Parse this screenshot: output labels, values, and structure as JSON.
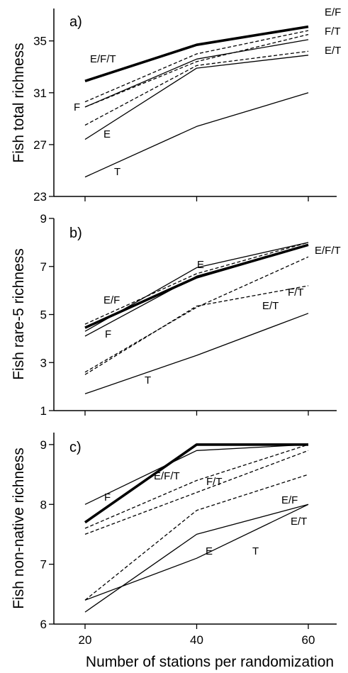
{
  "figure": {
    "xlabel": "Number of stations per randomization"
  },
  "chart_data": [
    {
      "type": "line",
      "panel_label": "a)",
      "ylabel": "Fish total richness",
      "x": [
        20,
        40,
        60
      ],
      "xticks": [
        "20",
        "40",
        "60"
      ],
      "ylim": [
        23,
        37.5
      ],
      "yticks": [
        "23",
        "27",
        "31",
        "35"
      ],
      "series": [
        {
          "name": "E/F/T",
          "values": [
            31.9,
            34.7,
            36.1
          ],
          "style": "bold"
        },
        {
          "name": "E/F",
          "values": [
            30.3,
            34.0,
            35.8
          ],
          "style": "dashed"
        },
        {
          "name": "F/T",
          "values": [
            29.9,
            33.4,
            35.5
          ],
          "style": "dashed"
        },
        {
          "name": "E/T",
          "values": [
            28.5,
            33.1,
            34.2
          ],
          "style": "dashed"
        },
        {
          "name": "F",
          "values": [
            29.9,
            33.6,
            35.1
          ],
          "style": "solid"
        },
        {
          "name": "E",
          "values": [
            27.4,
            32.9,
            33.9
          ],
          "style": "solid"
        },
        {
          "name": "T",
          "values": [
            24.5,
            28.4,
            31.0
          ],
          "style": "solid"
        }
      ]
    },
    {
      "type": "line",
      "panel_label": "b)",
      "ylabel": "Fish rare-5 richness",
      "x": [
        20,
        40,
        60
      ],
      "xticks": [
        "20",
        "40",
        "60"
      ],
      "ylim": [
        1,
        9
      ],
      "yticks": [
        "1",
        "3",
        "5",
        "7",
        "9"
      ],
      "series": [
        {
          "name": "E/F/T",
          "values": [
            4.45,
            6.55,
            7.9
          ],
          "style": "bold"
        },
        {
          "name": "E/F",
          "values": [
            4.6,
            6.7,
            8.0
          ],
          "style": "dashed"
        },
        {
          "name": "F/T",
          "values": [
            2.6,
            5.3,
            7.4
          ],
          "style": "dashed"
        },
        {
          "name": "E/T",
          "values": [
            2.5,
            5.35,
            6.2
          ],
          "style": "dashed"
        },
        {
          "name": "E",
          "values": [
            4.3,
            6.95,
            8.0
          ],
          "style": "solid"
        },
        {
          "name": "F",
          "values": [
            4.1,
            6.6,
            7.9
          ],
          "style": "solid"
        },
        {
          "name": "T",
          "values": [
            1.7,
            3.3,
            5.05
          ],
          "style": "solid"
        }
      ]
    },
    {
      "type": "line",
      "panel_label": "c)",
      "ylabel": "Fish non-native richness",
      "x": [
        20,
        40,
        60
      ],
      "xticks": [
        "20",
        "40",
        "60"
      ],
      "ylim": [
        6,
        9.2
      ],
      "yticks": [
        "6",
        "7",
        "8",
        "9"
      ],
      "series": [
        {
          "name": "E/F/T",
          "values": [
            7.7,
            9.0,
            9.0
          ],
          "style": "bold"
        },
        {
          "name": "F",
          "values": [
            8.0,
            8.9,
            9.0
          ],
          "style": "solid"
        },
        {
          "name": "F/T",
          "values": [
            7.6,
            8.4,
            9.0
          ],
          "style": "dashed"
        },
        {
          "name": "E/F",
          "values": [
            7.5,
            8.2,
            8.9
          ],
          "style": "dashed"
        },
        {
          "name": "E/T",
          "values": [
            6.4,
            7.9,
            8.5
          ],
          "style": "dashed"
        },
        {
          "name": "E",
          "values": [
            6.2,
            7.5,
            8.0
          ],
          "style": "solid"
        },
        {
          "name": "T",
          "values": [
            6.4,
            7.1,
            8.0
          ],
          "style": "solid"
        }
      ]
    }
  ]
}
